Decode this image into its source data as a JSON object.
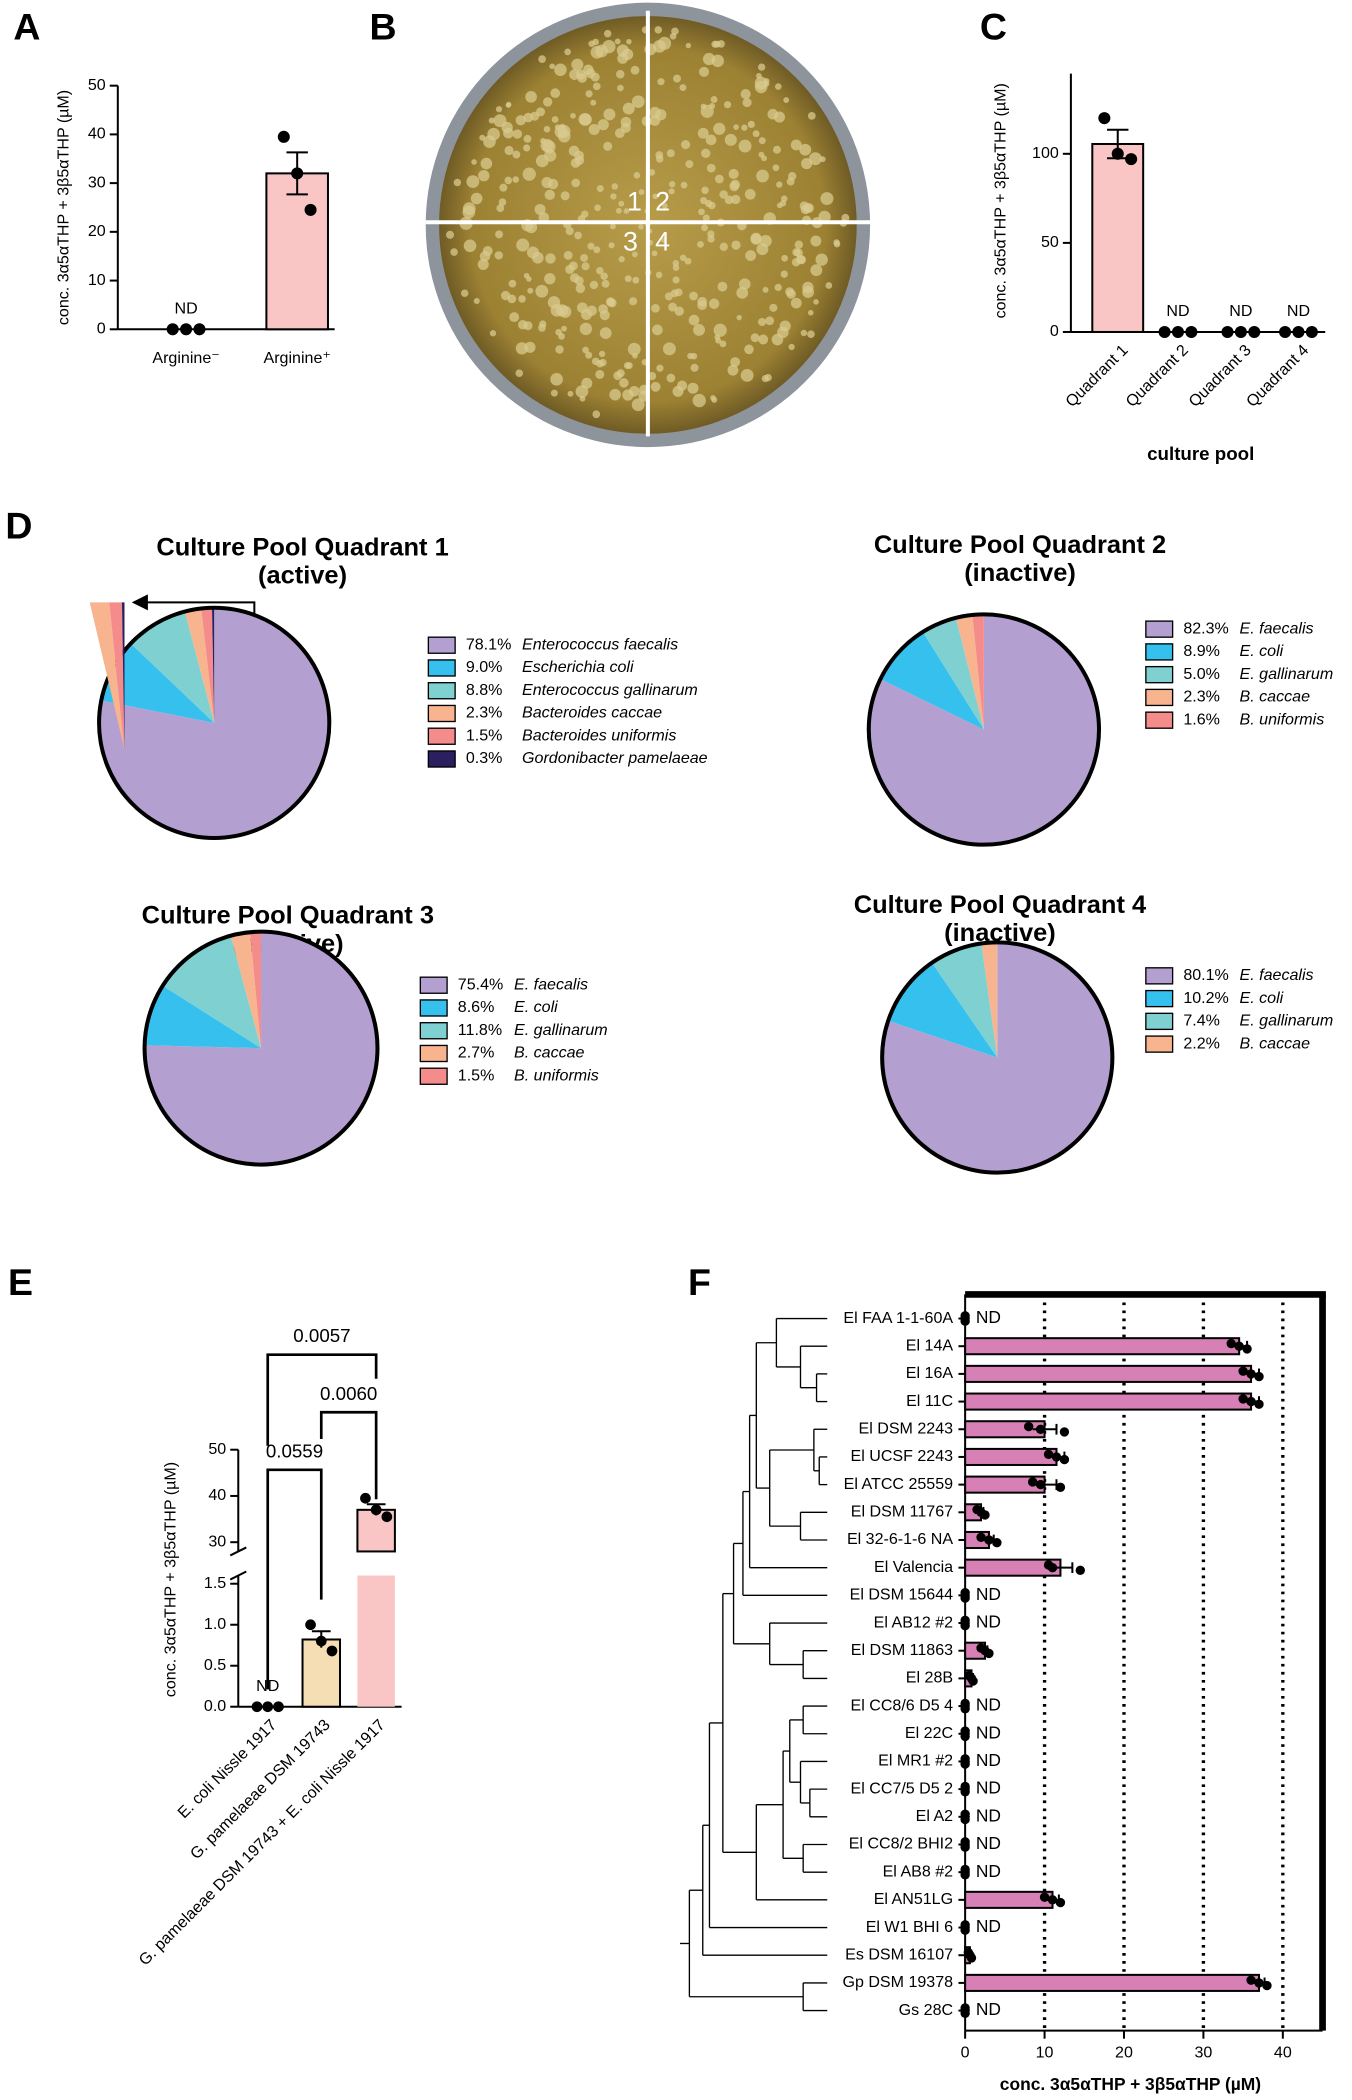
{
  "chart_data": [
    {
      "type": "bar",
      "panel": "A",
      "ylabel": "conc. 3α5αTHP + 3β5αTHP (µM)",
      "categories": [
        "Arginine⁻",
        "Arginine⁺"
      ],
      "values": [
        0,
        32
      ],
      "errors": [
        0,
        4.3
      ],
      "points": [
        [
          0,
          0,
          0
        ],
        [
          39.5,
          32,
          24.5
        ]
      ],
      "value_labels": [
        "ND",
        null
      ],
      "color": "#f9c5c5",
      "ylim": [
        0,
        50
      ],
      "yticks": [
        0,
        10,
        20,
        30,
        40,
        50
      ]
    },
    {
      "type": "image",
      "panel": "B",
      "labels": [
        "1",
        "2",
        "3",
        "4"
      ]
    },
    {
      "type": "bar",
      "panel": "C",
      "ylabel": "conc. 3α5αTHP + 3β5αTHP (µM)",
      "xlabel": "culture pool",
      "categories": [
        "Quadrant 1",
        "Quadrant 2",
        "Quadrant 3",
        "Quadrant 4"
      ],
      "values": [
        105.5,
        0,
        0,
        0
      ],
      "errors": [
        8,
        0,
        0,
        0
      ],
      "points": [
        [
          120,
          100,
          97
        ],
        [
          0,
          0,
          0
        ],
        [
          0,
          0,
          0
        ],
        [
          0,
          0,
          0
        ]
      ],
      "value_labels": [
        null,
        "ND",
        "ND",
        "ND"
      ],
      "color": "#f9c5c5",
      "ylim": [
        0,
        145
      ],
      "yticks": [
        0,
        50,
        100
      ]
    },
    {
      "type": "pie",
      "panel": "D",
      "title": "Culture Pool Quadrant 1",
      "subtitle": "(active)",
      "labels": [
        "Enterococcus faecalis",
        "Escherichia coli",
        "Enterococcus gallinarum",
        "Bacteroides caccae",
        "Bacteroides uniformis",
        "Gordonibacter pamelaeae"
      ],
      "values": [
        78.1,
        9.0,
        8.8,
        2.3,
        1.5,
        0.3
      ],
      "value_labels": [
        "78.1%",
        "9.0%",
        "8.8%",
        "2.3%",
        "1.5%",
        "0.3%"
      ],
      "colors": [
        "#b3a0d0",
        "#36c0ee",
        "#7fd0d0",
        "#f7b48e",
        "#f48c8c",
        "#2c1f60"
      ]
    },
    {
      "type": "pie",
      "title": "Culture Pool Quadrant 2",
      "subtitle": "(inactive)",
      "labels": [
        "E. faecalis",
        "E. coli",
        "E. gallinarum",
        "B. caccae",
        "B. uniformis"
      ],
      "values": [
        82.3,
        8.9,
        5.0,
        2.3,
        1.6
      ],
      "value_labels": [
        "82.3%",
        "8.9%",
        "5.0%",
        "2.3%",
        "1.6%"
      ],
      "colors": [
        "#b3a0d0",
        "#36c0ee",
        "#7fd0d0",
        "#f7b48e",
        "#f48c8c"
      ]
    },
    {
      "type": "pie",
      "title": "Culture Pool Quadrant 3",
      "subtitle": "(inactive)",
      "labels": [
        "E. faecalis",
        "E. coli",
        "E. gallinarum",
        "B. caccae",
        "B. uniformis"
      ],
      "values": [
        75.4,
        8.6,
        11.8,
        2.7,
        1.5
      ],
      "value_labels": [
        "75.4%",
        "8.6%",
        "11.8%",
        "2.7%",
        "1.5%"
      ],
      "colors": [
        "#b3a0d0",
        "#36c0ee",
        "#7fd0d0",
        "#f7b48e",
        "#f48c8c"
      ]
    },
    {
      "type": "pie",
      "title": "Culture Pool Quadrant 4",
      "subtitle": "(inactive)",
      "labels": [
        "E. faecalis",
        "E. coli",
        "E. gallinarum",
        "B. caccae"
      ],
      "values": [
        80.1,
        10.2,
        7.4,
        2.2
      ],
      "value_labels": [
        "80.1%",
        "10.2%",
        "7.4%",
        "2.2%"
      ],
      "colors": [
        "#b3a0d0",
        "#36c0ee",
        "#7fd0d0",
        "#f7b48e"
      ]
    },
    {
      "type": "broken_bar",
      "panel": "E",
      "ylabel": "conc. 3α5αTHP + 3β5αTHP (µM)",
      "categories": [
        "E. coli Nissle 1917",
        "G. pamelaeae DSM 19743",
        "G. pamelaeae DSM 19743 + E. coli Nissle 1917"
      ],
      "values": [
        0,
        0.82,
        37
      ],
      "errors": [
        0,
        0.1,
        1.2
      ],
      "points": [
        [
          0,
          0,
          0
        ],
        [
          1.0,
          0.8,
          0.68
        ],
        [
          39.5,
          37,
          35.5
        ]
      ],
      "value_labels": [
        "ND",
        null,
        null
      ],
      "colors": [
        "#ffffff",
        "#f5deb3",
        "#f9c5c5"
      ],
      "ylim_lower": [
        0,
        1.6
      ],
      "ylim_upper": [
        28,
        50
      ],
      "yticks": [
        {
          "value": 0,
          "label": "0.0"
        },
        0.5,
        {
          "value": 1,
          "label": "1.0"
        },
        1.5,
        30,
        40,
        50
      ],
      "comparisons": [
        {
          "groups": [
            0,
            2
          ],
          "label": "0.0057"
        },
        {
          "groups": [
            1,
            2
          ],
          "label": "0.0060"
        },
        {
          "groups": [
            0,
            1
          ],
          "label": "0.0559"
        }
      ]
    },
    {
      "type": "hbar",
      "panel": "F",
      "xlabel": "conc. 3α5αTHP + 3β5αTHP (µM)",
      "categories": [
        "El FAA 1-1-60A",
        "El 14A",
        "El 16A",
        "El 11C",
        "El DSM 2243",
        "El UCSF 2243",
        "El ATCC 25559",
        "El DSM 11767",
        "El 32-6-1-6 NA",
        "El Valencia",
        "El DSM 15644",
        "El AB12 #2",
        "El DSM 11863",
        "El 28B",
        "El CC8/6 D5 4",
        "El 22C",
        "El MR1 #2",
        "El CC7/5 D5 2",
        "El A2",
        "El CC8/2 BHI2",
        "El AB8 #2",
        "El AN51LG",
        "El W1 BHI 6",
        "Es DSM 16107",
        "Gp DSM 19378",
        "Gs 28C"
      ],
      "values": [
        0,
        34.5,
        36,
        36,
        10,
        11.5,
        10,
        2,
        3,
        12,
        0,
        0,
        2.5,
        0.8,
        0,
        0,
        0,
        0,
        0,
        0,
        0,
        11,
        0,
        0.6,
        37,
        0
      ],
      "errors": [
        0,
        1,
        1,
        1,
        1.5,
        1,
        1.5,
        0.3,
        0.6,
        1.5,
        0,
        0,
        0.3,
        0.2,
        0,
        0,
        0,
        0,
        0,
        0,
        0,
        0.8,
        0,
        0.1,
        0.7,
        0
      ],
      "points": [
        [
          0,
          0,
          0
        ],
        [
          33.5,
          34.5,
          35.5
        ],
        [
          35,
          36,
          37
        ],
        [
          35,
          36,
          37
        ],
        [
          8,
          9.5,
          12.5
        ],
        [
          10.5,
          11.5,
          12.5
        ],
        [
          8.5,
          9.5,
          12
        ],
        [
          1.5,
          2,
          2.5
        ],
        [
          2,
          3,
          4
        ],
        [
          10.5,
          11,
          14.5
        ],
        [
          0,
          0,
          0
        ],
        [
          0,
          0,
          0
        ],
        [
          2,
          2.5,
          3
        ],
        [
          0.5,
          0.8,
          1
        ],
        [
          0,
          0,
          0
        ],
        [
          0,
          0,
          0
        ],
        [
          0,
          0,
          0
        ],
        [
          0,
          0,
          0
        ],
        [
          0,
          0,
          0
        ],
        [
          0,
          0,
          0
        ],
        [
          0,
          0,
          0
        ],
        [
          10,
          11,
          12
        ],
        [
          0,
          0,
          0
        ],
        [
          0.4,
          0.6,
          0.8
        ],
        [
          36,
          37,
          38
        ],
        [
          0,
          0,
          0
        ]
      ],
      "value_labels": [
        "ND",
        null,
        null,
        null,
        null,
        null,
        null,
        null,
        null,
        null,
        "ND",
        "ND",
        null,
        null,
        "ND",
        "ND",
        "ND",
        "ND",
        "ND",
        "ND",
        "ND",
        null,
        "ND",
        null,
        null,
        "ND"
      ],
      "color": "#d680b5",
      "xlim": [
        0,
        45
      ],
      "xticks": [
        0,
        10,
        20,
        30,
        40
      ],
      "grid": true
    }
  ]
}
